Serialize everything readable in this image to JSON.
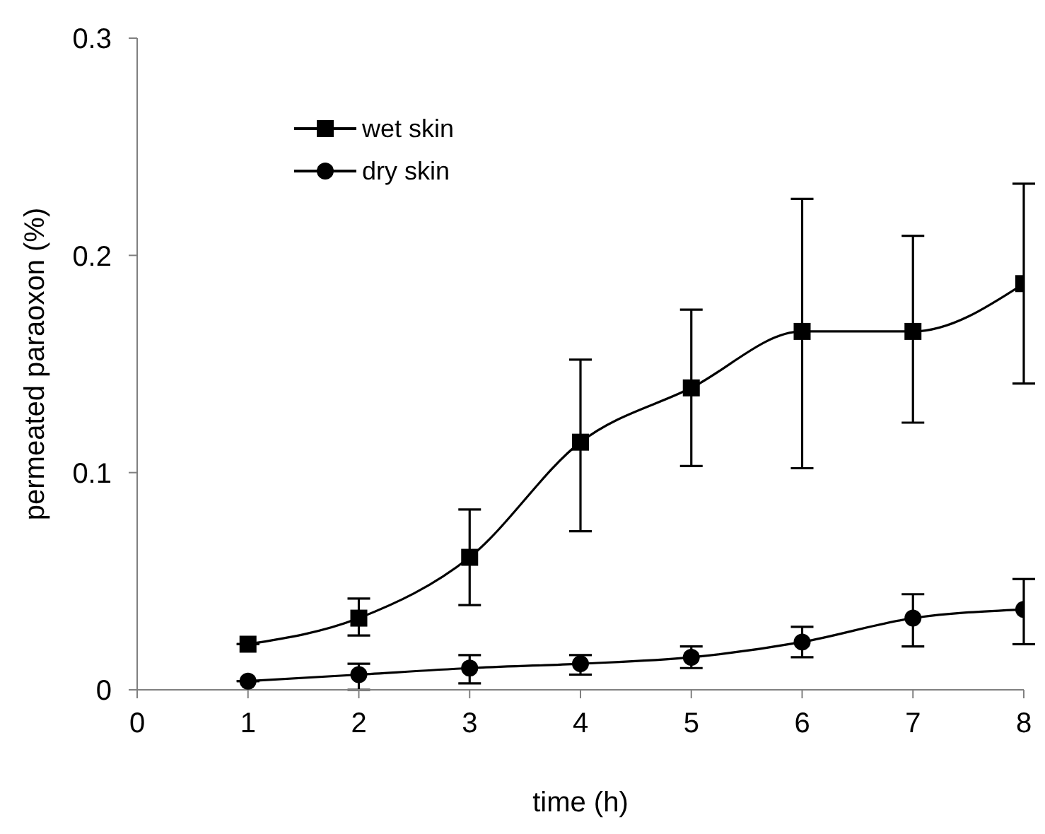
{
  "chart_data": {
    "type": "line",
    "xlabel": "time (h)",
    "ylabel": "permeated paraoxon (%)",
    "x": [
      1,
      2,
      3,
      4,
      5,
      6,
      7,
      8
    ],
    "series": [
      {
        "name": "wet skin",
        "color": "#000000",
        "marker": "square",
        "values": [
          0.021,
          0.033,
          0.061,
          0.114,
          0.139,
          0.165,
          0.165,
          0.187
        ],
        "errors": [
          null,
          [
            0.025,
            0.042
          ],
          [
            0.039,
            0.083
          ],
          [
            0.073,
            0.152
          ],
          [
            0.103,
            0.175
          ],
          [
            0.102,
            0.226
          ],
          [
            0.123,
            0.209
          ],
          [
            0.141,
            0.233
          ]
        ]
      },
      {
        "name": "dry skin",
        "color": "#000000",
        "marker": "circle",
        "values": [
          0.004,
          0.007,
          0.01,
          0.012,
          0.015,
          0.022,
          0.033,
          0.037
        ],
        "errors": [
          null,
          [
            0.0,
            0.012
          ],
          [
            0.003,
            0.016
          ],
          [
            0.007,
            0.016
          ],
          [
            0.01,
            0.02
          ],
          [
            0.015,
            0.029
          ],
          [
            0.02,
            0.044
          ],
          [
            0.021,
            0.051
          ]
        ]
      }
    ],
    "xlim": [
      0,
      8
    ],
    "xticks": [
      0,
      1,
      2,
      3,
      4,
      5,
      6,
      7,
      8
    ],
    "ylim": [
      0,
      0.3
    ],
    "yticks": [
      0,
      0.1,
      0.2,
      0.3
    ],
    "grid": false,
    "legend": "top left",
    "line_style": "solid"
  }
}
